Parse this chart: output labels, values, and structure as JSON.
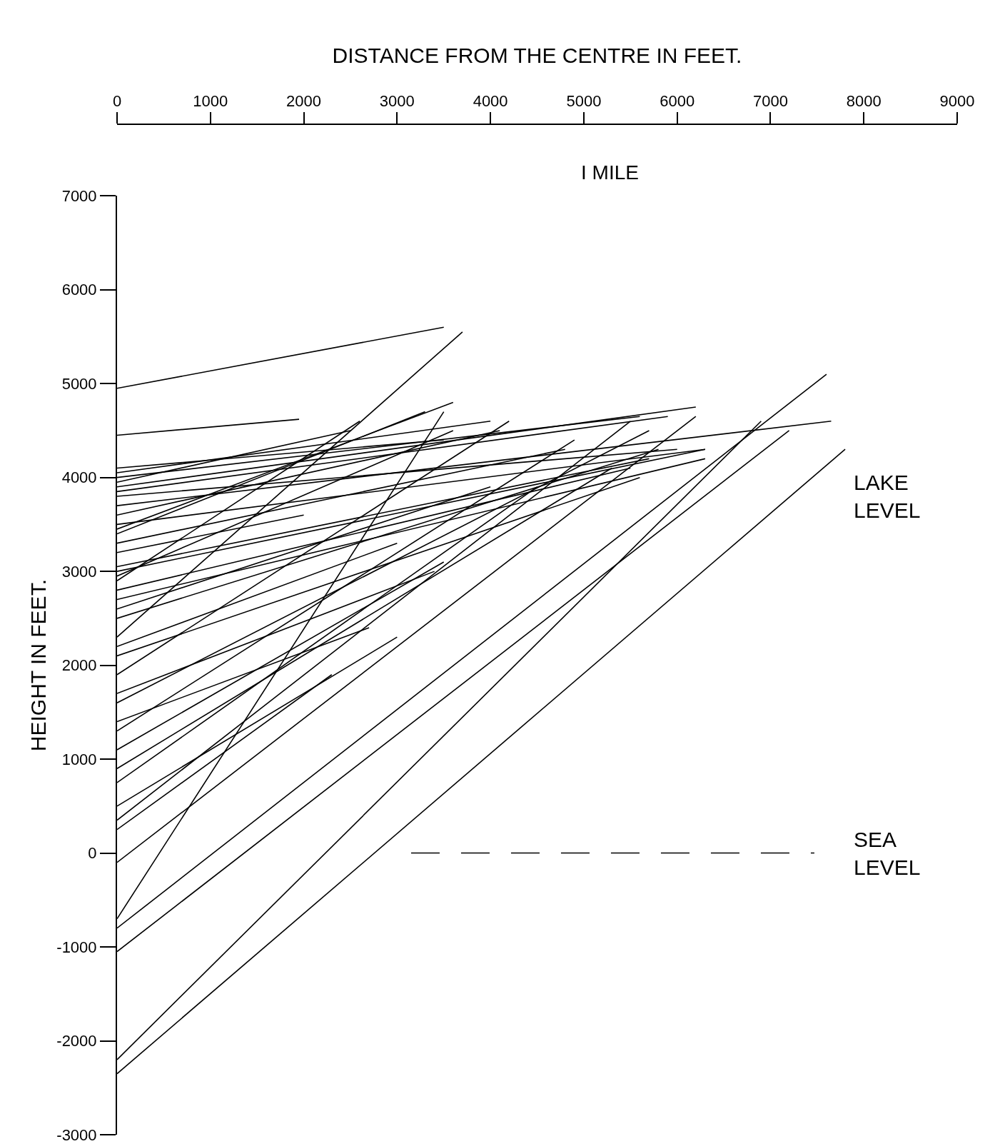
{
  "chart_data": {
    "type": "line",
    "xlabel": "DISTANCE FROM THE CENTRE IN FEET.",
    "ylabel": "HEIGHT IN FEET.",
    "xlim": [
      0,
      9000
    ],
    "xticks": [
      0,
      1000,
      2000,
      3000,
      4000,
      5000,
      6000,
      7000,
      8000,
      9000
    ],
    "ylim": [
      -3000,
      7000
    ],
    "yticks": [
      -3000,
      -2000,
      -1000,
      0,
      1000,
      2000,
      3000,
      4000,
      5000,
      6000,
      7000
    ],
    "grid": false,
    "marker": "none",
    "line_style": "solid",
    "ref_lines": [
      {
        "axis": "y",
        "value": 0,
        "label": "SEA LEVEL",
        "line_style": "dashed",
        "color": "#000000"
      }
    ],
    "annotations": [
      "LAKE LEVEL",
      "I MILE"
    ],
    "series": [
      {
        "color": "#000000",
        "x": [
          0,
          3500
        ],
        "values": [
          4950,
          5600
        ]
      },
      {
        "color": "#000000",
        "x": [
          0,
          3700
        ],
        "values": [
          2300,
          5550
        ]
      },
      {
        "color": "#000000",
        "x": [
          0,
          1950
        ],
        "values": [
          4450,
          4620
        ]
      },
      {
        "color": "#000000",
        "x": [
          0,
          7600
        ],
        "values": [
          -800,
          5100
        ]
      },
      {
        "color": "#000000",
        "x": [
          0,
          7200
        ],
        "values": [
          -1050,
          4500
        ]
      },
      {
        "color": "#000000",
        "x": [
          0,
          6900
        ],
        "values": [
          -2200,
          4600
        ]
      },
      {
        "color": "#000000",
        "x": [
          0,
          7800
        ],
        "values": [
          -2350,
          4300
        ]
      },
      {
        "color": "#000000",
        "x": [
          0,
          7650
        ],
        "values": [
          3700,
          4600
        ]
      },
      {
        "color": "#000000",
        "x": [
          0,
          6200
        ],
        "values": [
          3900,
          4750
        ]
      },
      {
        "color": "#000000",
        "x": [
          0,
          4000
        ],
        "values": [
          4050,
          4600
        ]
      },
      {
        "color": "#000000",
        "x": [
          0,
          5600
        ],
        "values": [
          4000,
          4650
        ]
      },
      {
        "color": "#000000",
        "x": [
          0,
          5900
        ],
        "values": [
          3850,
          4650
        ]
      },
      {
        "color": "#000000",
        "x": [
          0,
          4100
        ],
        "values": [
          3600,
          4500
        ]
      },
      {
        "color": "#000000",
        "x": [
          0,
          6300
        ],
        "values": [
          3500,
          4300
        ]
      },
      {
        "color": "#000000",
        "x": [
          0,
          3600
        ],
        "values": [
          3450,
          4800
        ]
      },
      {
        "color": "#000000",
        "x": [
          0,
          3300
        ],
        "values": [
          3400,
          4700
        ]
      },
      {
        "color": "#000000",
        "x": [
          0,
          5700
        ],
        "values": [
          3050,
          4200
        ]
      },
      {
        "color": "#000000",
        "x": [
          0,
          6300
        ],
        "values": [
          3000,
          4300
        ]
      },
      {
        "color": "#000000",
        "x": [
          0,
          3600
        ],
        "values": [
          2950,
          4500
        ]
      },
      {
        "color": "#000000",
        "x": [
          0,
          2600
        ],
        "values": [
          2900,
          4600
        ]
      },
      {
        "color": "#000000",
        "x": [
          0,
          5500
        ],
        "values": [
          2800,
          4100
        ]
      },
      {
        "color": "#000000",
        "x": [
          0,
          4000
        ],
        "values": [
          2600,
          3900
        ]
      },
      {
        "color": "#000000",
        "x": [
          0,
          5800
        ],
        "values": [
          2500,
          4300
        ]
      },
      {
        "color": "#000000",
        "x": [
          0,
          3000
        ],
        "values": [
          2200,
          3300
        ]
      },
      {
        "color": "#000000",
        "x": [
          0,
          5600
        ],
        "values": [
          2100,
          4000
        ]
      },
      {
        "color": "#000000",
        "x": [
          0,
          4200
        ],
        "values": [
          1900,
          4600
        ]
      },
      {
        "color": "#000000",
        "x": [
          0,
          3400
        ],
        "values": [
          1700,
          3000
        ]
      },
      {
        "color": "#000000",
        "x": [
          0,
          5700
        ],
        "values": [
          1600,
          4500
        ]
      },
      {
        "color": "#000000",
        "x": [
          0,
          2700
        ],
        "values": [
          1400,
          2400
        ]
      },
      {
        "color": "#000000",
        "x": [
          0,
          4900
        ],
        "values": [
          1300,
          4400
        ]
      },
      {
        "color": "#000000",
        "x": [
          0,
          3500
        ],
        "values": [
          1100,
          3100
        ]
      },
      {
        "color": "#000000",
        "x": [
          0,
          5300
        ],
        "values": [
          900,
          4100
        ]
      },
      {
        "color": "#000000",
        "x": [
          0,
          4500
        ],
        "values": [
          750,
          3900
        ]
      },
      {
        "color": "#000000",
        "x": [
          0,
          3000
        ],
        "values": [
          500,
          2300
        ]
      },
      {
        "color": "#000000",
        "x": [
          0,
          5500
        ],
        "values": [
          350,
          4600
        ]
      },
      {
        "color": "#000000",
        "x": [
          0,
          2300
        ],
        "values": [
          250,
          1900
        ]
      },
      {
        "color": "#000000",
        "x": [
          0,
          6200
        ],
        "values": [
          -100,
          4650
        ]
      },
      {
        "color": "#000000",
        "x": [
          0,
          3500
        ],
        "values": [
          -700,
          4700
        ]
      },
      {
        "color": "#000000",
        "x": [
          0,
          3500
        ],
        "values": [
          4100,
          4400
        ]
      },
      {
        "color": "#000000",
        "x": [
          0,
          2500
        ],
        "values": [
          3950,
          4500
        ]
      },
      {
        "color": "#000000",
        "x": [
          0,
          6000
        ],
        "values": [
          3800,
          4300
        ]
      },
      {
        "color": "#000000",
        "x": [
          0,
          4800
        ],
        "values": [
          3300,
          4300
        ]
      },
      {
        "color": "#000000",
        "x": [
          0,
          2000
        ],
        "values": [
          3200,
          3600
        ]
      },
      {
        "color": "#000000",
        "x": [
          0,
          6300
        ],
        "values": [
          2700,
          4200
        ]
      }
    ]
  }
}
